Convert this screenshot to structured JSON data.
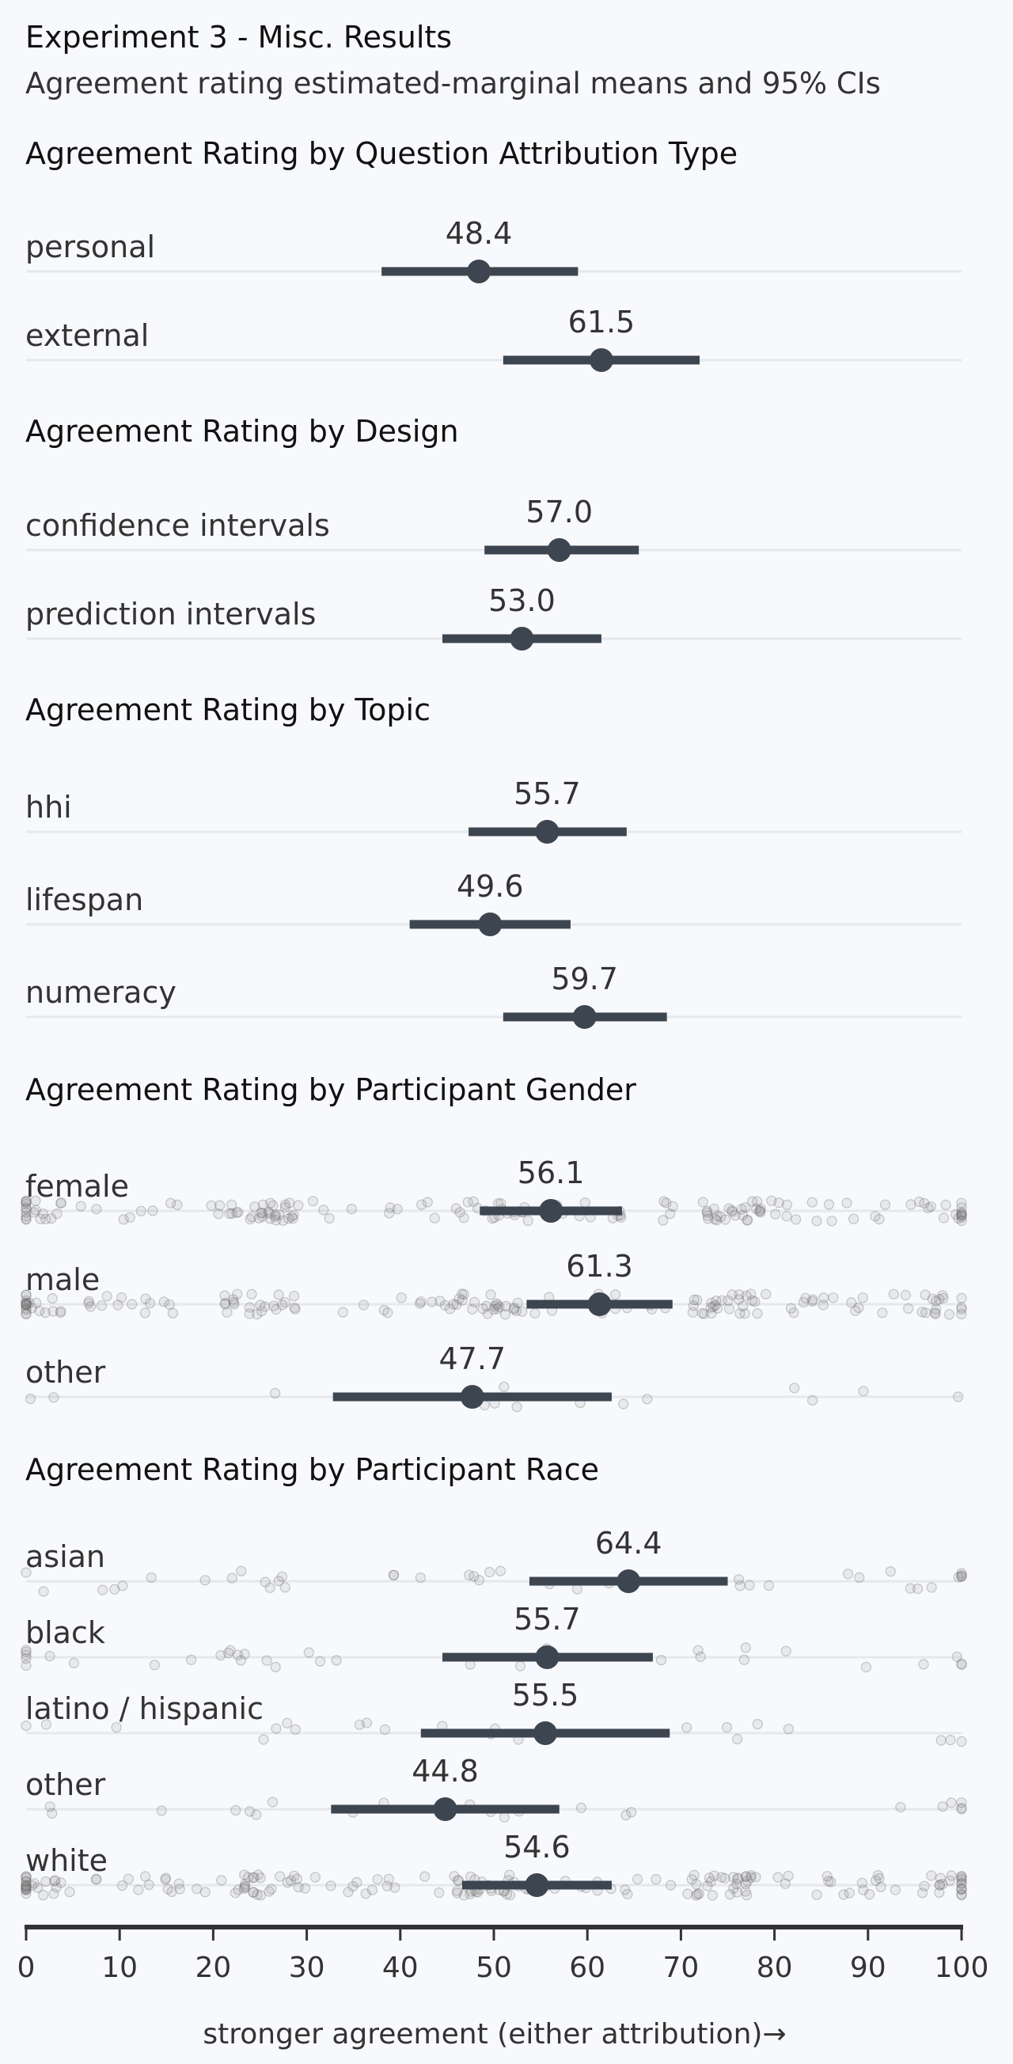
{
  "chart_data": {
    "type": "dot-interval",
    "title": "Experiment 3 - Misc. Results",
    "subtitle": "Agreement rating estimated-marginal means and 95% CIs",
    "xlabel": "stronger agreement (either attribution)→",
    "xlim": [
      0,
      100
    ],
    "xticks": [
      0,
      10,
      20,
      30,
      40,
      50,
      60,
      70,
      80,
      90,
      100
    ],
    "colors": {
      "interval": "#3d4650",
      "raw_points": "#888888",
      "axis": "#333333"
    },
    "panels": [
      {
        "title": "Agreement Rating by Question Attribution Type",
        "raw_data": false,
        "rows": [
          {
            "label": "personal",
            "mean": 48.4,
            "ci": [
              38,
              59
            ]
          },
          {
            "label": "external",
            "mean": 61.5,
            "ci": [
              51,
              72
            ]
          }
        ]
      },
      {
        "title": "Agreement Rating by Design",
        "raw_data": false,
        "rows": [
          {
            "label": "confidence intervals",
            "mean": 57.0,
            "ci": [
              49,
              65.5
            ]
          },
          {
            "label": "prediction intervals",
            "mean": 53.0,
            "ci": [
              44.5,
              61.5
            ]
          }
        ]
      },
      {
        "title": "Agreement Rating by Topic",
        "raw_data": false,
        "rows": [
          {
            "label": "hhi",
            "mean": 55.7,
            "ci": [
              47.3,
              64.2
            ]
          },
          {
            "label": "lifespan",
            "mean": 49.6,
            "ci": [
              41,
              58.2
            ]
          },
          {
            "label": "numeracy",
            "mean": 59.7,
            "ci": [
              51,
              68.5
            ]
          }
        ]
      },
      {
        "title": "Agreement Rating by Participant Gender",
        "raw_data": true,
        "rows": [
          {
            "label": "female",
            "mean": 56.1,
            "ci": [
              48.5,
              63.7
            ]
          },
          {
            "label": "male",
            "mean": 61.3,
            "ci": [
              53.5,
              69.1
            ]
          },
          {
            "label": "other",
            "mean": 47.7,
            "ci": [
              32.8,
              62.6
            ]
          }
        ]
      },
      {
        "title": "Agreement Rating by Participant Race",
        "raw_data": true,
        "rows": [
          {
            "label": "asian",
            "mean": 64.4,
            "ci": [
              53.8,
              75
            ]
          },
          {
            "label": "black",
            "mean": 55.7,
            "ci": [
              44.5,
              67
            ]
          },
          {
            "label": "latino / hispanic",
            "mean": 55.5,
            "ci": [
              42.2,
              68.8
            ]
          },
          {
            "label": "other",
            "mean": 44.8,
            "ci": [
              32.6,
              57
            ]
          },
          {
            "label": "white",
            "mean": 54.6,
            "ci": [
              46.6,
              62.6
            ]
          }
        ]
      }
    ]
  }
}
